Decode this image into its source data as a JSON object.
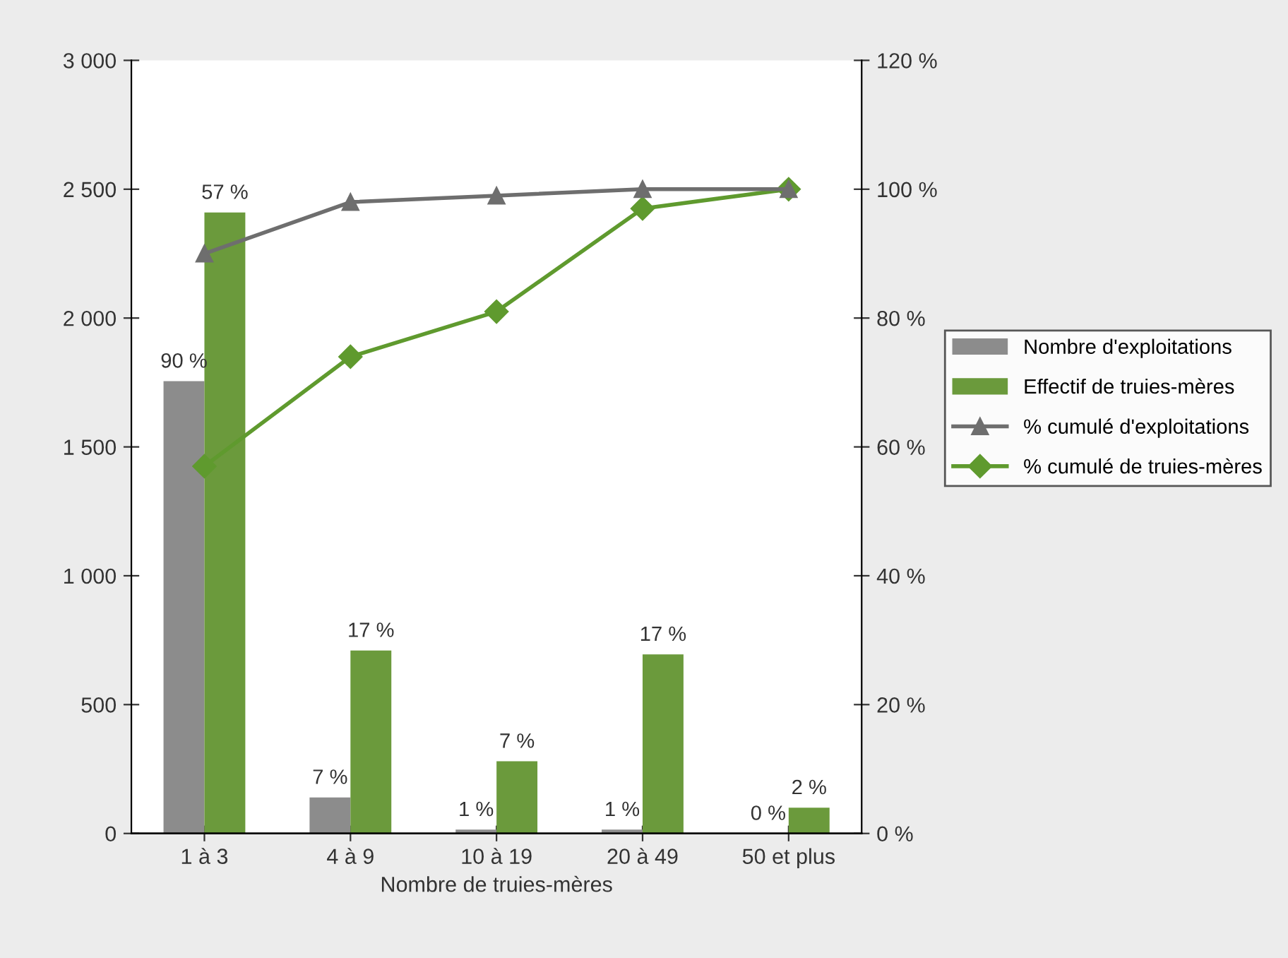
{
  "chart_data": {
    "type": "bar",
    "xlabel": "Nombre de truies-mères",
    "categories": [
      "1 à 3",
      "4 à 9",
      "10 à 19",
      "20 à 49",
      "50 et plus"
    ],
    "series": [
      {
        "name": "Nombre d'exploitations",
        "color": "#8c8c8c",
        "values": [
          1755,
          140,
          15,
          15,
          0
        ]
      },
      {
        "name": "Effectif de truies-mères",
        "color": "#6b9a3c",
        "values": [
          2410,
          710,
          280,
          695,
          100
        ]
      },
      {
        "name": "% cumulé d'exploitations",
        "type": "line",
        "axis": "y2",
        "color": "#6e6e6e",
        "marker": "triangle",
        "values": [
          90,
          98,
          99,
          100,
          100
        ]
      },
      {
        "name": "% cumulé de truies-mères",
        "type": "line",
        "axis": "y2",
        "color": "#5f9a2e",
        "marker": "diamond",
        "values": [
          57,
          74,
          81,
          97,
          100
        ]
      }
    ],
    "ylim": [
      0,
      3000
    ],
    "yticks": [
      0,
      {
        "value": 500,
        "label": "500"
      },
      {
        "value": 1000,
        "label": "1 000"
      },
      {
        "value": 1500,
        "label": "1 500"
      },
      {
        "value": 2000,
        "label": "2 000"
      },
      {
        "value": 2500,
        "label": "2 500"
      },
      {
        "value": 3000,
        "label": "3 000"
      }
    ],
    "y2lim": [
      0,
      120
    ],
    "y2ticks": [
      {
        "value": 0,
        "label": "0 %"
      },
      {
        "value": 20,
        "label": "20 %"
      },
      {
        "value": 40,
        "label": "40 %"
      },
      {
        "value": 60,
        "label": "60 %"
      },
      {
        "value": 80,
        "label": "80 %"
      },
      {
        "value": 100,
        "label": "100 %"
      },
      {
        "value": 120,
        "label": "120 %"
      }
    ],
    "annotations": [
      {
        "text": "90 %",
        "x": "1 à 3",
        "y": 1755
      },
      {
        "text": "7 %",
        "x": "4 à 9",
        "y": 140
      },
      {
        "text": "1 %",
        "x": "10 à 19",
        "y": 15
      },
      {
        "text": "1 %",
        "x": "20 à 49",
        "y": 15
      },
      {
        "text": "0 %",
        "x": "50 et plus",
        "y": 0
      },
      {
        "text": "57 %",
        "x": "1 à 3",
        "y": 2410
      },
      {
        "text": "17 %",
        "x": "4 à 9",
        "y": 710
      },
      {
        "text": "7 %",
        "x": "10 à 19",
        "y": 280
      },
      {
        "text": "17 %",
        "x": "20 à 49",
        "y": 695
      },
      {
        "text": "2 %",
        "x": "50 et plus",
        "y": 100
      }
    ],
    "grid": false,
    "legend": "right"
  }
}
